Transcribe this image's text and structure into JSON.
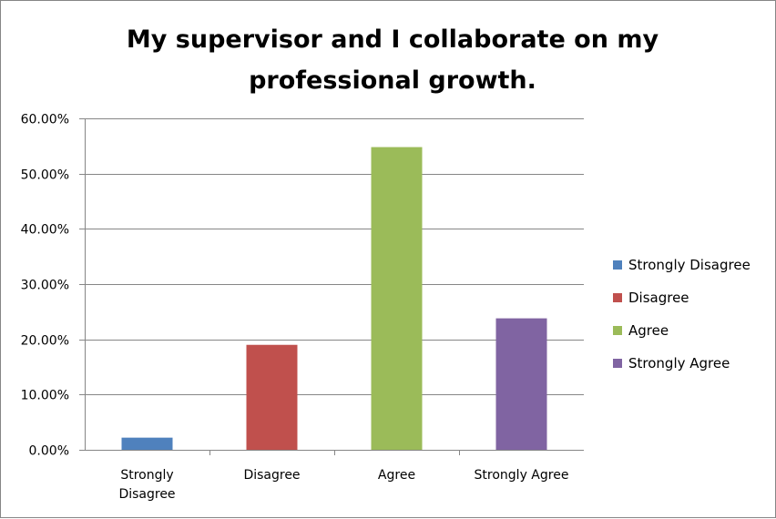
{
  "chart_data": {
    "type": "bar",
    "title": "My supervisor and I collaborate on my professional growth.",
    "categories": [
      "Strongly Disagree",
      "Disagree",
      "Agree",
      "Strongly Agree"
    ],
    "category_label_lines": [
      [
        "Strongly",
        "Disagree"
      ],
      [
        "Disagree"
      ],
      [
        "Agree"
      ],
      [
        "Strongly Agree"
      ]
    ],
    "values": [
      0.022,
      0.19,
      0.548,
      0.238
    ],
    "ylim": [
      0,
      0.6
    ],
    "yticks": [
      0,
      0.1,
      0.2,
      0.3,
      0.4,
      0.5,
      0.6
    ],
    "ytick_labels": [
      "0.00%",
      "10.00%",
      "20.00%",
      "30.00%",
      "40.00%",
      "50.00%",
      "60.00%"
    ],
    "colors": [
      "#4f81bd",
      "#c0504d",
      "#9bbb59",
      "#8064a2"
    ],
    "grid": true,
    "legend_position": "right",
    "legend": [
      "Strongly Disagree",
      "Disagree",
      "Agree",
      "Strongly Agree"
    ]
  }
}
